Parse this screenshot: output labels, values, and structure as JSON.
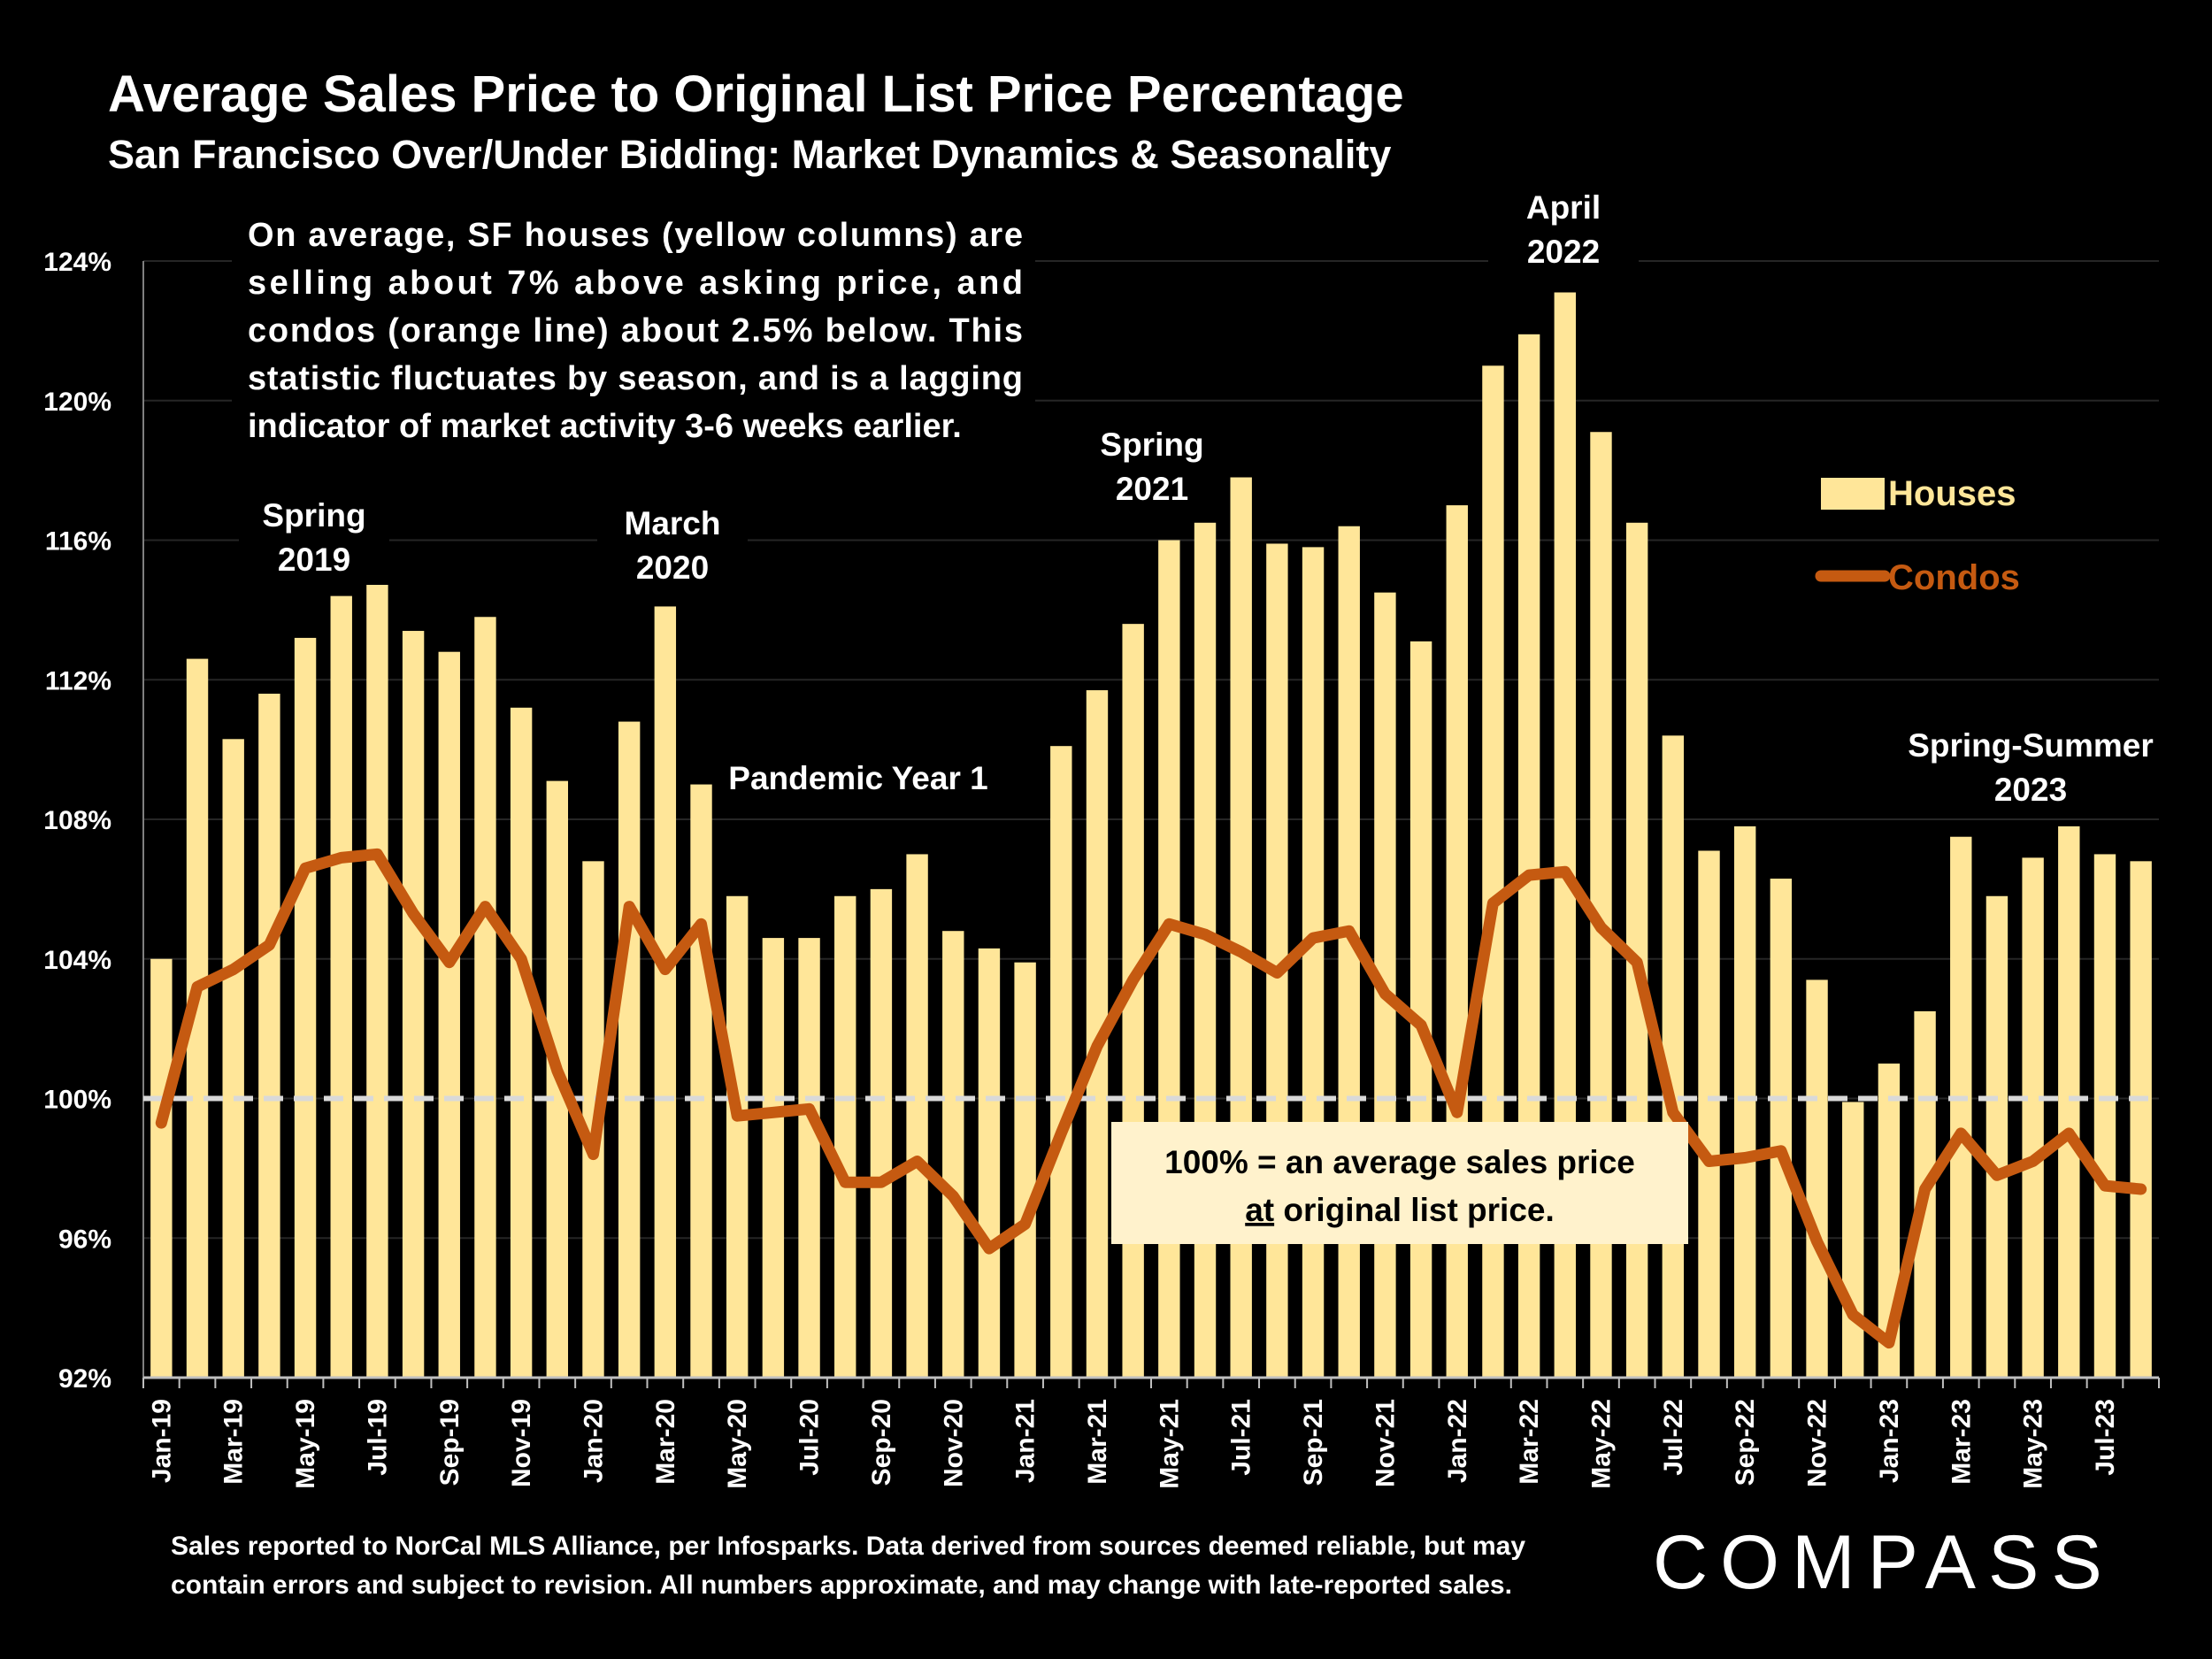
{
  "title": "Average Sales Price to Original List Price Percentage",
  "subtitle": "San Francisco Over/Under Bidding: Market Dynamics & Seasonality",
  "intro_lines": [
    "On average, SF houses (yellow columns) are",
    "selling about 7% above asking price, and",
    "condos (orange line) about 2.5% below. This",
    "statistic fluctuates by season, and is a lagging",
    "indicator of market activity 3-6 weeks earlier."
  ],
  "callout": {
    "line1": "100% = an average sales price",
    "line2_underlined": "at",
    "line2_rest": " original list price."
  },
  "annotations": [
    {
      "lines": [
        "Spring",
        "2019"
      ],
      "near": "Jun-19"
    },
    {
      "lines": [
        "March",
        "2020"
      ],
      "near": "Mar-20"
    },
    {
      "lines": [
        "Pandemic Year 1"
      ],
      "near": "Sep-20"
    },
    {
      "lines": [
        "Spring",
        "2021"
      ],
      "near": "Jun-21"
    },
    {
      "lines": [
        "April",
        "2022"
      ],
      "near": "Apr-22"
    },
    {
      "lines": [
        "Spring-Summer",
        "2023"
      ],
      "near": "May-23"
    }
  ],
  "footnote_lines": [
    "Sales reported to NorCal MLS Alliance, per Infosparks. Data derived from sources deemed reliable, but may",
    "contain errors and subject to revision. All numbers approximate, and may change with late-reported sales."
  ],
  "brand": "COMPASS",
  "colors": {
    "houses": "#FFE699",
    "condos": "#C55A11",
    "background": "#000000",
    "reference_line": "#D9D9D9"
  },
  "chart_data": {
    "type": "bar",
    "categories": [
      "Jan-19",
      "Feb-19",
      "Mar-19",
      "Apr-19",
      "May-19",
      "Jun-19",
      "Jul-19",
      "Aug-19",
      "Sep-19",
      "Oct-19",
      "Nov-19",
      "Dec-19",
      "Jan-20",
      "Feb-20",
      "Mar-20",
      "Apr-20",
      "May-20",
      "Jun-20",
      "Jul-20",
      "Aug-20",
      "Sep-20",
      "Oct-20",
      "Nov-20",
      "Dec-20",
      "Jan-21",
      "Feb-21",
      "Mar-21",
      "Apr-21",
      "May-21",
      "Jun-21",
      "Jul-21",
      "Aug-21",
      "Sep-21",
      "Oct-21",
      "Nov-21",
      "Dec-21",
      "Jan-22",
      "Feb-22",
      "Mar-22",
      "Apr-22",
      "May-22",
      "Jun-22",
      "Jul-22",
      "Aug-22",
      "Sep-22",
      "Oct-22",
      "Nov-22",
      "Dec-22",
      "Jan-23",
      "Feb-23",
      "Mar-23",
      "Apr-23",
      "May-23",
      "Jun-23",
      "Jul-23",
      "Aug-23"
    ],
    "x_tick_labels": [
      "Jan-19",
      "Mar-19",
      "May-19",
      "Jul-19",
      "Sep-19",
      "Nov-19",
      "Jan-20",
      "Mar-20",
      "May-20",
      "Jul-20",
      "Sep-20",
      "Nov-20",
      "Jan-21",
      "Mar-21",
      "May-21",
      "Jul-21",
      "Sep-21",
      "Nov-21",
      "Jan-22",
      "Mar-22",
      "May-22",
      "Jul-22",
      "Sep-22",
      "Nov-22",
      "Jan-23",
      "Mar-23",
      "May-23",
      "Jul-23"
    ],
    "y_tick_labels": [
      "92%",
      "96%",
      "100%",
      "104%",
      "108%",
      "112%",
      "116%",
      "120%",
      "124%"
    ],
    "ylim": [
      92,
      124
    ],
    "reference_line": 100,
    "grid": true,
    "legend": "right",
    "series": [
      {
        "name": "Houses",
        "type": "bar",
        "values": [
          104.0,
          112.6,
          110.3,
          111.6,
          113.2,
          114.4,
          114.9,
          113.4,
          112.8,
          113.8,
          111.2,
          109.1,
          106.8,
          110.8,
          114.1,
          109.0,
          105.8,
          104.6,
          104.6,
          105.8,
          106.0,
          107.0,
          104.8,
          104.3,
          103.9,
          110.1,
          111.7,
          113.6,
          116.0,
          116.5,
          117.8,
          115.9,
          115.8,
          116.4,
          114.5,
          113.1,
          117.0,
          121.0,
          121.9,
          123.1,
          119.1,
          116.5,
          110.4,
          107.1,
          107.8,
          106.3,
          103.4,
          99.9,
          101.0,
          102.5,
          107.5,
          105.8,
          106.9,
          107.8,
          107.0,
          106.8
        ]
      },
      {
        "name": "Condos",
        "type": "line",
        "values": [
          99.3,
          103.2,
          103.7,
          104.4,
          106.6,
          106.9,
          107.0,
          105.3,
          103.9,
          105.5,
          104.0,
          100.8,
          98.4,
          105.5,
          103.7,
          105.0,
          99.5,
          99.6,
          99.7,
          97.6,
          97.6,
          98.2,
          97.2,
          95.7,
          96.4,
          99.0,
          101.5,
          103.4,
          105.0,
          104.7,
          104.2,
          103.6,
          104.6,
          104.8,
          103.0,
          102.1,
          99.6,
          105.6,
          106.4,
          106.5,
          104.9,
          103.9,
          99.6,
          98.2,
          98.3,
          98.5,
          95.9,
          93.8,
          93.0,
          97.4,
          99.0,
          97.8,
          98.2,
          99.0,
          97.5,
          97.4
        ]
      }
    ]
  }
}
